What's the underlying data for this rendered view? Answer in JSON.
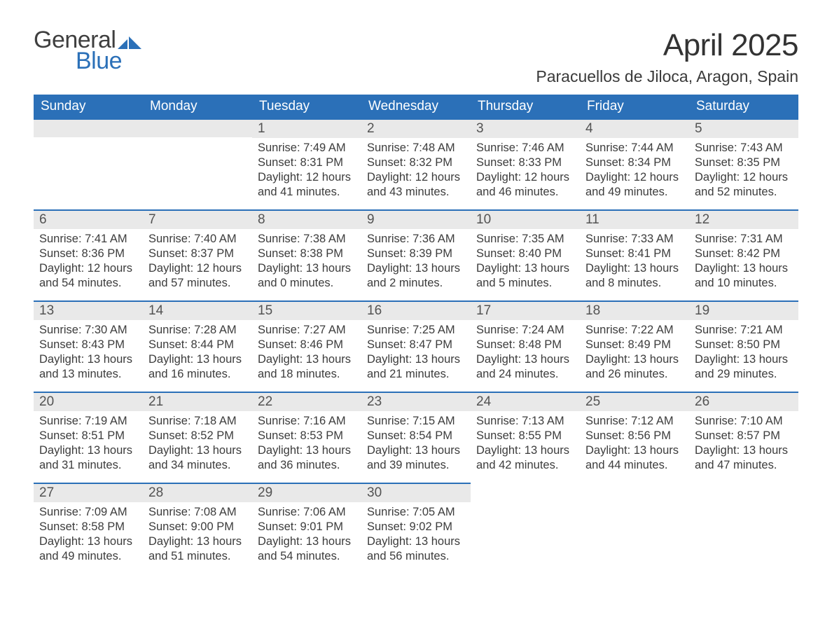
{
  "brand": {
    "general": "General",
    "blue": "Blue"
  },
  "title": "April 2025",
  "location": "Paracuellos de Jiloca, Aragon, Spain",
  "colors": {
    "header_bg": "#2b70b8",
    "header_text": "#ffffff",
    "daybar_bg": "#e9e9e9",
    "daybar_border": "#2b70b8",
    "body_text": "#3c3c3c",
    "brand_blue": "#2b70b8"
  },
  "weekdays": [
    "Sunday",
    "Monday",
    "Tuesday",
    "Wednesday",
    "Thursday",
    "Friday",
    "Saturday"
  ],
  "sunrise_label": "Sunrise:",
  "sunset_label": "Sunset:",
  "daylight_label": "Daylight:",
  "weeks": [
    [
      null,
      null,
      {
        "n": "1",
        "sunrise": "7:49 AM",
        "sunset": "8:31 PM",
        "daylight": "12 hours and 41 minutes."
      },
      {
        "n": "2",
        "sunrise": "7:48 AM",
        "sunset": "8:32 PM",
        "daylight": "12 hours and 43 minutes."
      },
      {
        "n": "3",
        "sunrise": "7:46 AM",
        "sunset": "8:33 PM",
        "daylight": "12 hours and 46 minutes."
      },
      {
        "n": "4",
        "sunrise": "7:44 AM",
        "sunset": "8:34 PM",
        "daylight": "12 hours and 49 minutes."
      },
      {
        "n": "5",
        "sunrise": "7:43 AM",
        "sunset": "8:35 PM",
        "daylight": "12 hours and 52 minutes."
      }
    ],
    [
      {
        "n": "6",
        "sunrise": "7:41 AM",
        "sunset": "8:36 PM",
        "daylight": "12 hours and 54 minutes."
      },
      {
        "n": "7",
        "sunrise": "7:40 AM",
        "sunset": "8:37 PM",
        "daylight": "12 hours and 57 minutes."
      },
      {
        "n": "8",
        "sunrise": "7:38 AM",
        "sunset": "8:38 PM",
        "daylight": "13 hours and 0 minutes."
      },
      {
        "n": "9",
        "sunrise": "7:36 AM",
        "sunset": "8:39 PM",
        "daylight": "13 hours and 2 minutes."
      },
      {
        "n": "10",
        "sunrise": "7:35 AM",
        "sunset": "8:40 PM",
        "daylight": "13 hours and 5 minutes."
      },
      {
        "n": "11",
        "sunrise": "7:33 AM",
        "sunset": "8:41 PM",
        "daylight": "13 hours and 8 minutes."
      },
      {
        "n": "12",
        "sunrise": "7:31 AM",
        "sunset": "8:42 PM",
        "daylight": "13 hours and 10 minutes."
      }
    ],
    [
      {
        "n": "13",
        "sunrise": "7:30 AM",
        "sunset": "8:43 PM",
        "daylight": "13 hours and 13 minutes."
      },
      {
        "n": "14",
        "sunrise": "7:28 AM",
        "sunset": "8:44 PM",
        "daylight": "13 hours and 16 minutes."
      },
      {
        "n": "15",
        "sunrise": "7:27 AM",
        "sunset": "8:46 PM",
        "daylight": "13 hours and 18 minutes."
      },
      {
        "n": "16",
        "sunrise": "7:25 AM",
        "sunset": "8:47 PM",
        "daylight": "13 hours and 21 minutes."
      },
      {
        "n": "17",
        "sunrise": "7:24 AM",
        "sunset": "8:48 PM",
        "daylight": "13 hours and 24 minutes."
      },
      {
        "n": "18",
        "sunrise": "7:22 AM",
        "sunset": "8:49 PM",
        "daylight": "13 hours and 26 minutes."
      },
      {
        "n": "19",
        "sunrise": "7:21 AM",
        "sunset": "8:50 PM",
        "daylight": "13 hours and 29 minutes."
      }
    ],
    [
      {
        "n": "20",
        "sunrise": "7:19 AM",
        "sunset": "8:51 PM",
        "daylight": "13 hours and 31 minutes."
      },
      {
        "n": "21",
        "sunrise": "7:18 AM",
        "sunset": "8:52 PM",
        "daylight": "13 hours and 34 minutes."
      },
      {
        "n": "22",
        "sunrise": "7:16 AM",
        "sunset": "8:53 PM",
        "daylight": "13 hours and 36 minutes."
      },
      {
        "n": "23",
        "sunrise": "7:15 AM",
        "sunset": "8:54 PM",
        "daylight": "13 hours and 39 minutes."
      },
      {
        "n": "24",
        "sunrise": "7:13 AM",
        "sunset": "8:55 PM",
        "daylight": "13 hours and 42 minutes."
      },
      {
        "n": "25",
        "sunrise": "7:12 AM",
        "sunset": "8:56 PM",
        "daylight": "13 hours and 44 minutes."
      },
      {
        "n": "26",
        "sunrise": "7:10 AM",
        "sunset": "8:57 PM",
        "daylight": "13 hours and 47 minutes."
      }
    ],
    [
      {
        "n": "27",
        "sunrise": "7:09 AM",
        "sunset": "8:58 PM",
        "daylight": "13 hours and 49 minutes."
      },
      {
        "n": "28",
        "sunrise": "7:08 AM",
        "sunset": "9:00 PM",
        "daylight": "13 hours and 51 minutes."
      },
      {
        "n": "29",
        "sunrise": "7:06 AM",
        "sunset": "9:01 PM",
        "daylight": "13 hours and 54 minutes."
      },
      {
        "n": "30",
        "sunrise": "7:05 AM",
        "sunset": "9:02 PM",
        "daylight": "13 hours and 56 minutes."
      },
      null,
      null,
      null
    ]
  ]
}
